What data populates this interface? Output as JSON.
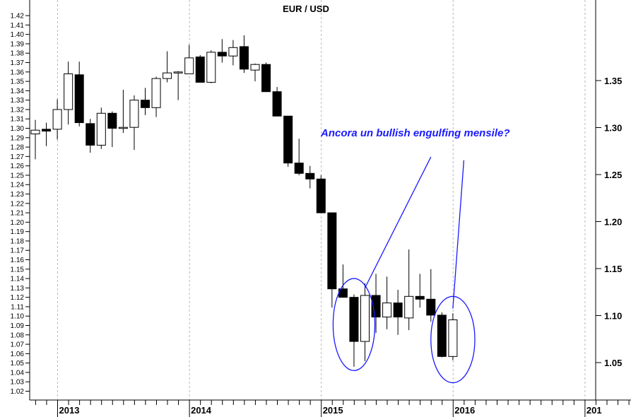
{
  "chart_data": {
    "type": "candlestick",
    "title": "EUR / USD",
    "xlabel": "",
    "ylabel": "",
    "ylim": [
      1.015,
      1.43
    ],
    "grid": "vertical-dashed-at-year-starts",
    "left_ticks": [
      "1.42",
      "1.41",
      "1.40",
      "1.39",
      "1.38",
      "1.37",
      "1.36",
      "1.35",
      "1.34",
      "1.33",
      "1.32",
      "1.31",
      "1.30",
      "1.29",
      "1.28",
      "1.27",
      "1.26",
      "1.25",
      "1.24",
      "1.23",
      "1.22",
      "1.21",
      "1.20",
      "1.19",
      "1.18",
      "1.17",
      "1.16",
      "1.15",
      "1.14",
      "1.13",
      "1.12",
      "1.11",
      "1.10",
      "1.09",
      "1.08",
      "1.07",
      "1.06",
      "1.05",
      "1.04",
      "1.03",
      "1.02"
    ],
    "right_ticks": [
      "1.35",
      "1.30",
      "1.25",
      "1.20",
      "1.15",
      "1.10",
      "1.05"
    ],
    "years": [
      "2013",
      "2014",
      "2015",
      "2016",
      "201"
    ],
    "candles": [
      {
        "date": "2012-10",
        "open": 1.294,
        "high": 1.309,
        "low": 1.267,
        "close": 1.298
      },
      {
        "date": "2012-11",
        "open": 1.299,
        "high": 1.306,
        "low": 1.281,
        "close": 1.297
      },
      {
        "date": "2012-12",
        "open": 1.299,
        "high": 1.331,
        "low": 1.288,
        "close": 1.32
      },
      {
        "date": "2013-01",
        "open": 1.32,
        "high": 1.371,
        "low": 1.304,
        "close": 1.358
      },
      {
        "date": "2013-02",
        "open": 1.357,
        "high": 1.371,
        "low": 1.302,
        "close": 1.306
      },
      {
        "date": "2013-03",
        "open": 1.305,
        "high": 1.31,
        "low": 1.274,
        "close": 1.282
      },
      {
        "date": "2013-04",
        "open": 1.282,
        "high": 1.322,
        "low": 1.278,
        "close": 1.316
      },
      {
        "date": "2013-05",
        "open": 1.316,
        "high": 1.318,
        "low": 1.28,
        "close": 1.3
      },
      {
        "date": "2013-06",
        "open": 1.3,
        "high": 1.341,
        "low": 1.295,
        "close": 1.301
      },
      {
        "date": "2013-07",
        "open": 1.301,
        "high": 1.335,
        "low": 1.277,
        "close": 1.33
      },
      {
        "date": "2013-08",
        "open": 1.33,
        "high": 1.343,
        "low": 1.314,
        "close": 1.322
      },
      {
        "date": "2013-09",
        "open": 1.322,
        "high": 1.355,
        "low": 1.312,
        "close": 1.353
      },
      {
        "date": "2013-10",
        "open": 1.353,
        "high": 1.382,
        "low": 1.349,
        "close": 1.359
      },
      {
        "date": "2013-11",
        "open": 1.359,
        "high": 1.361,
        "low": 1.33,
        "close": 1.36
      },
      {
        "date": "2013-12",
        "open": 1.358,
        "high": 1.389,
        "low": 1.358,
        "close": 1.375
      },
      {
        "date": "2014-01",
        "open": 1.376,
        "high": 1.378,
        "low": 1.349,
        "close": 1.349
      },
      {
        "date": "2014-02",
        "open": 1.349,
        "high": 1.383,
        "low": 1.348,
        "close": 1.381
      },
      {
        "date": "2014-03",
        "open": 1.381,
        "high": 1.395,
        "low": 1.37,
        "close": 1.377
      },
      {
        "date": "2014-04",
        "open": 1.377,
        "high": 1.394,
        "low": 1.367,
        "close": 1.386
      },
      {
        "date": "2014-05",
        "open": 1.387,
        "high": 1.399,
        "low": 1.359,
        "close": 1.363
      },
      {
        "date": "2014-06",
        "open": 1.362,
        "high": 1.369,
        "low": 1.35,
        "close": 1.368
      },
      {
        "date": "2014-07",
        "open": 1.368,
        "high": 1.37,
        "low": 1.339,
        "close": 1.339
      },
      {
        "date": "2014-08",
        "open": 1.339,
        "high": 1.344,
        "low": 1.313,
        "close": 1.313
      },
      {
        "date": "2014-09",
        "open": 1.313,
        "high": 1.313,
        "low": 1.259,
        "close": 1.263
      },
      {
        "date": "2014-10",
        "open": 1.263,
        "high": 1.289,
        "low": 1.25,
        "close": 1.252
      },
      {
        "date": "2014-11",
        "open": 1.252,
        "high": 1.26,
        "low": 1.236,
        "close": 1.246
      },
      {
        "date": "2014-12",
        "open": 1.246,
        "high": 1.25,
        "low": 1.21,
        "close": 1.21
      },
      {
        "date": "2015-01",
        "open": 1.21,
        "high": 1.21,
        "low": 1.109,
        "close": 1.129
      },
      {
        "date": "2015-02",
        "open": 1.129,
        "high": 1.155,
        "low": 1.12,
        "close": 1.12
      },
      {
        "date": "2015-03",
        "open": 1.12,
        "high": 1.123,
        "low": 1.046,
        "close": 1.073
      },
      {
        "date": "2015-04",
        "open": 1.073,
        "high": 1.135,
        "low": 1.052,
        "close": 1.122
      },
      {
        "date": "2015-05",
        "open": 1.122,
        "high": 1.145,
        "low": 1.082,
        "close": 1.099
      },
      {
        "date": "2015-06",
        "open": 1.099,
        "high": 1.142,
        "low": 1.086,
        "close": 1.114
      },
      {
        "date": "2015-07",
        "open": 1.114,
        "high": 1.128,
        "low": 1.08,
        "close": 1.099
      },
      {
        "date": "2015-08",
        "open": 1.098,
        "high": 1.171,
        "low": 1.085,
        "close": 1.121
      },
      {
        "date": "2015-09",
        "open": 1.121,
        "high": 1.145,
        "low": 1.109,
        "close": 1.118
      },
      {
        "date": "2015-10",
        "open": 1.118,
        "high": 1.15,
        "low": 1.094,
        "close": 1.101
      },
      {
        "date": "2015-11",
        "open": 1.101,
        "high": 1.104,
        "low": 1.056,
        "close": 1.057
      },
      {
        "date": "2015-12",
        "open": 1.057,
        "high": 1.103,
        "low": 1.053,
        "close": 1.096
      }
    ],
    "annotations": {
      "text": "Ancora un bullish engulfing mensile?",
      "color": "#1a1aff",
      "lines": [
        {
          "from": {
            "date": "2015-04",
            "value": 1.13
          },
          "to": {
            "date": "2015-10",
            "value": 1.2695
          }
        },
        {
          "from": {
            "date": "2015-12",
            "value": 1.108
          },
          "to": {
            "date": "2016-01",
            "value": 1.266
          }
        }
      ],
      "ellipses": [
        {
          "center_date": "2015-03",
          "center_value": 1.091,
          "half_width_months": 1.9,
          "half_height_value": 0.049
        },
        {
          "center_date": "2015-12",
          "center_value": 1.075,
          "half_width_months": 2.0,
          "half_height_value": 0.046
        }
      ]
    }
  }
}
